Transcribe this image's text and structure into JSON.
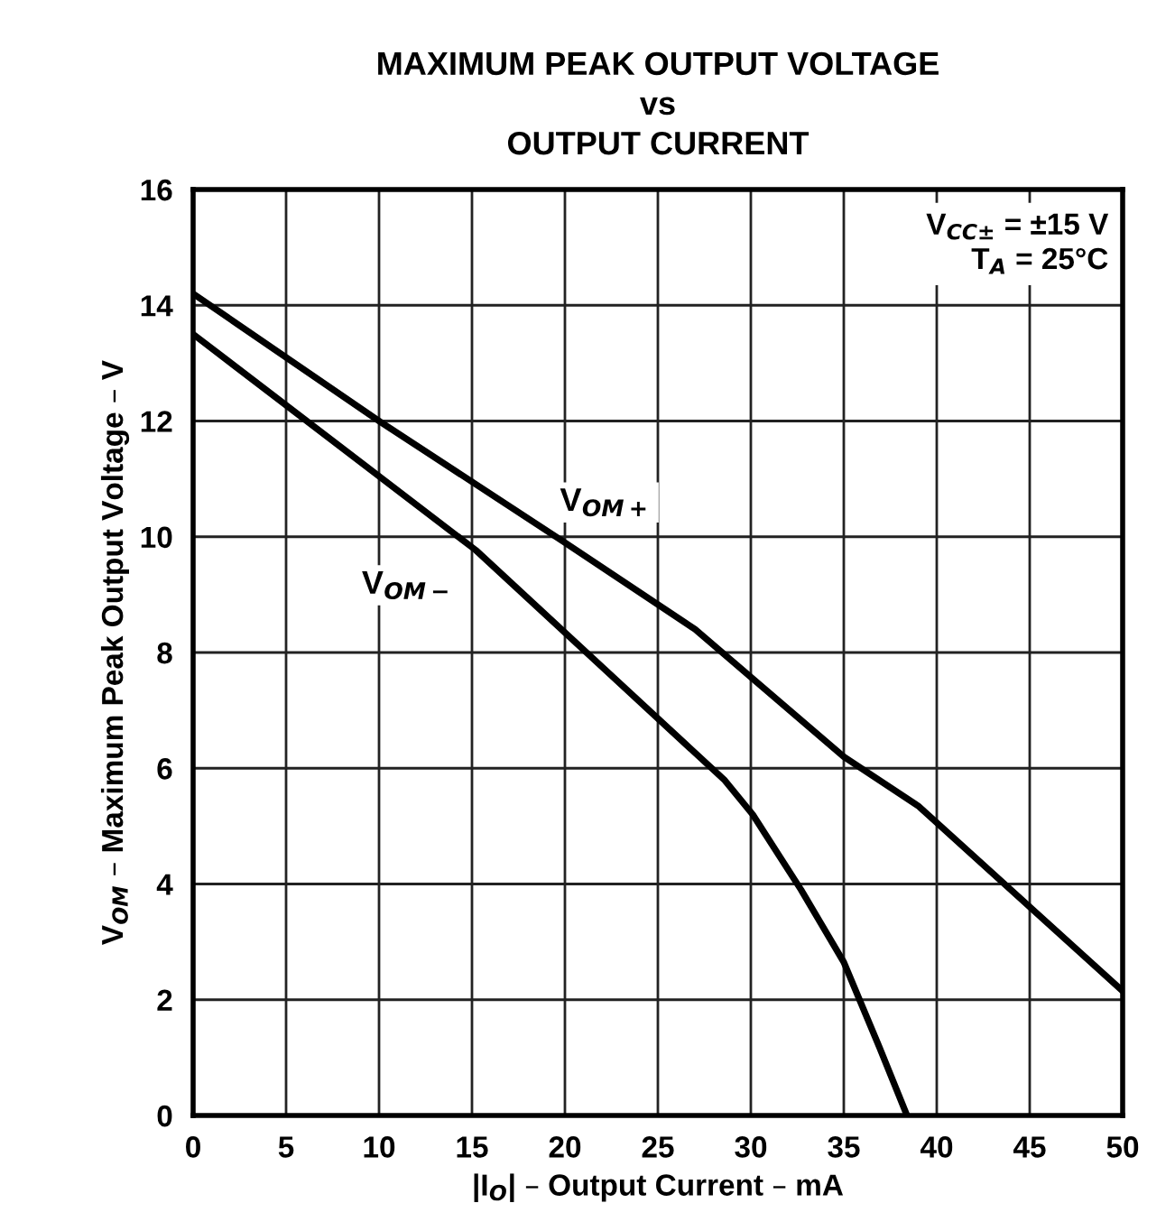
{
  "chart_data": {
    "type": "line",
    "title": "MAXIMUM PEAK OUTPUT VOLTAGE\nvs\nOUTPUT CURRENT",
    "xlabel": "|I$_{O}$| – Output Current – mA",
    "ylabel": "V$_{OM}$ – Maximum Peak Output Voltage – V",
    "annotations": [
      "V$_{CC±}$ = ±15 V\nT$_{A}$ = 25°C"
    ],
    "series": [
      {
        "name": "V$_{OM+}$",
        "color": "#000000",
        "x": [
          0,
          10,
          20,
          27,
          35,
          39,
          50
        ],
        "values": [
          14.2,
          12.0,
          9.9,
          8.4,
          6.2,
          5.35,
          2.15
        ]
      },
      {
        "name": "V$_{OM−}$",
        "color": "#000000",
        "x": [
          0,
          15.2,
          28.6,
          30.1,
          32.7,
          35.0,
          36.9,
          38.4
        ],
        "values": [
          13.5,
          9.77,
          5.79,
          5.2,
          3.9,
          2.65,
          1.19,
          0
        ]
      }
    ],
    "xlim": [
      0,
      50
    ],
    "xticks": [
      0,
      5,
      10,
      15,
      20,
      25,
      30,
      35,
      40,
      45,
      50
    ],
    "ylim": [
      0,
      16
    ],
    "yticks": [
      0,
      2,
      4,
      6,
      8,
      10,
      12,
      14,
      16
    ],
    "grid": true,
    "marker": "none",
    "line_style": "solid",
    "legend": false
  }
}
